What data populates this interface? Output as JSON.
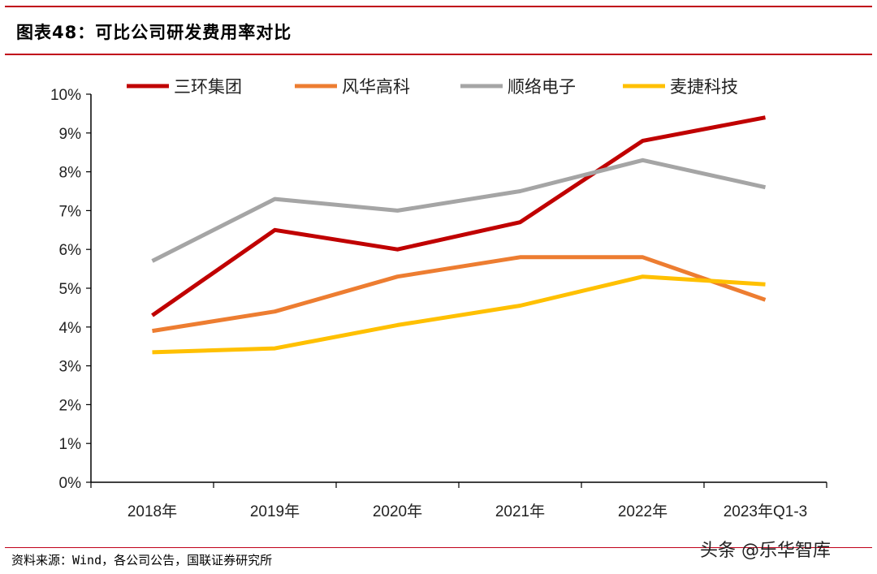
{
  "header": {
    "title": "图表48：可比公司研发费用率对比"
  },
  "footer": {
    "source": "资料来源：Wind，各公司公告，国联证券研究所"
  },
  "watermark": {
    "text": "头条 @乐华智库"
  },
  "chart_data": {
    "type": "line",
    "categories": [
      "2018年",
      "2019年",
      "2020年",
      "2021年",
      "2022年",
      "2023年Q1-3"
    ],
    "y_ticks": [
      "0%",
      "1%",
      "2%",
      "3%",
      "4%",
      "5%",
      "6%",
      "7%",
      "8%",
      "9%",
      "10%"
    ],
    "ylim": [
      0,
      10
    ],
    "grid": false,
    "legend_position": "top",
    "series": [
      {
        "name": "三环集团",
        "color": "#c00000",
        "values": [
          4.3,
          6.5,
          6.0,
          6.7,
          8.8,
          9.4
        ]
      },
      {
        "name": "风华高科",
        "color": "#ed7d31",
        "values": [
          3.9,
          4.4,
          5.3,
          5.8,
          5.8,
          4.7
        ]
      },
      {
        "name": "顺络电子",
        "color": "#a5a5a5",
        "values": [
          5.7,
          7.3,
          7.0,
          7.5,
          8.3,
          7.6
        ]
      },
      {
        "name": "麦捷科技",
        "color": "#ffc000",
        "values": [
          3.35,
          3.45,
          4.05,
          4.55,
          5.3,
          5.1
        ]
      }
    ]
  }
}
